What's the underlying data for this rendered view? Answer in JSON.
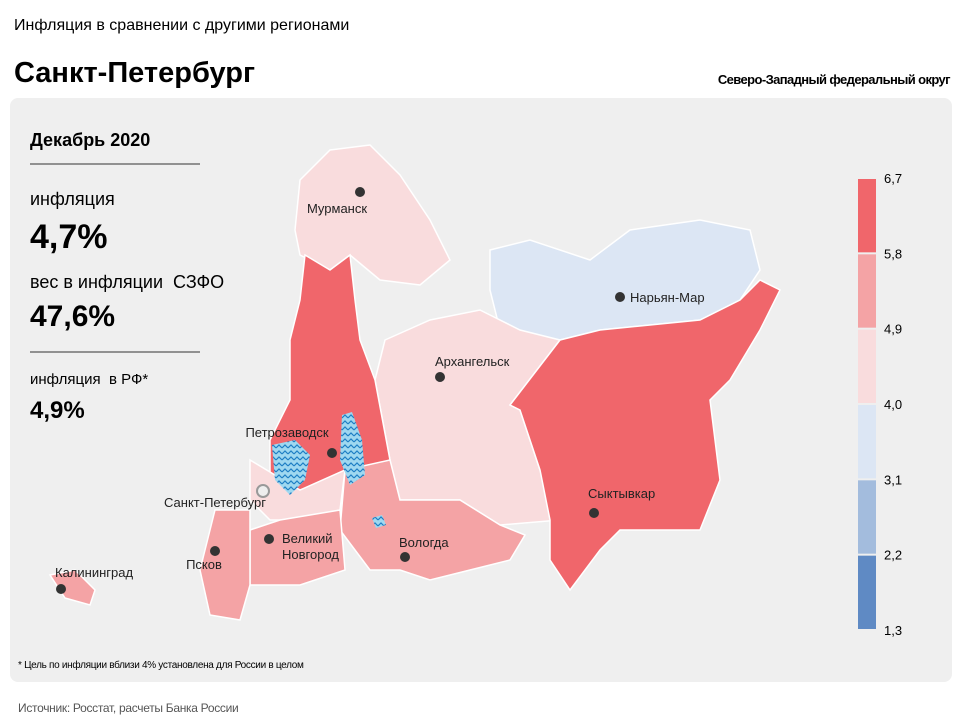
{
  "header": {
    "subtitle": "Инфляция в сравнении с другими регионами",
    "title": "Санкт-Петербург",
    "district": "Северо-Западный федеральный округ"
  },
  "panel": {
    "period": "Декабрь 2020",
    "inflation_label": "инфляция",
    "inflation_value": "4,7%",
    "weight_label": "вес в инфляции  СЗФО",
    "weight_value": "47,6%",
    "russia_label": "инфляция  в РФ*",
    "russia_value": "4,9%"
  },
  "legend": {
    "labels": [
      "6,7",
      "5,8",
      "4,9",
      "4,0",
      "3,1",
      "2,2",
      "1,3"
    ],
    "colors": [
      "#f0666b",
      "#f4a3a5",
      "#f9dcdd",
      "#dce6f4",
      "#a3bcdd",
      "#5f8ac4"
    ]
  },
  "cities": [
    {
      "label_lines": [
        "Мурманск"
      ]
    },
    {
      "label_lines": [
        "Нарьян-Мар"
      ]
    },
    {
      "label_lines": [
        "Архангельск"
      ]
    },
    {
      "label_lines": [
        "Петрозаводск"
      ]
    },
    {
      "label_lines": [
        "Санкт-Петербург"
      ]
    },
    {
      "label_lines": [
        "Сыктывкар"
      ]
    },
    {
      "label_lines": [
        "Великий",
        "Новгород"
      ]
    },
    {
      "label_lines": [
        "Вологда"
      ]
    },
    {
      "label_lines": [
        "Псков"
      ]
    },
    {
      "label_lines": [
        "Калининград"
      ]
    }
  ],
  "footnote": "* Цель по инфляции вблизи 4% установлена для России в целом",
  "source": "Источник: Росстат, расчеты Банка России"
}
